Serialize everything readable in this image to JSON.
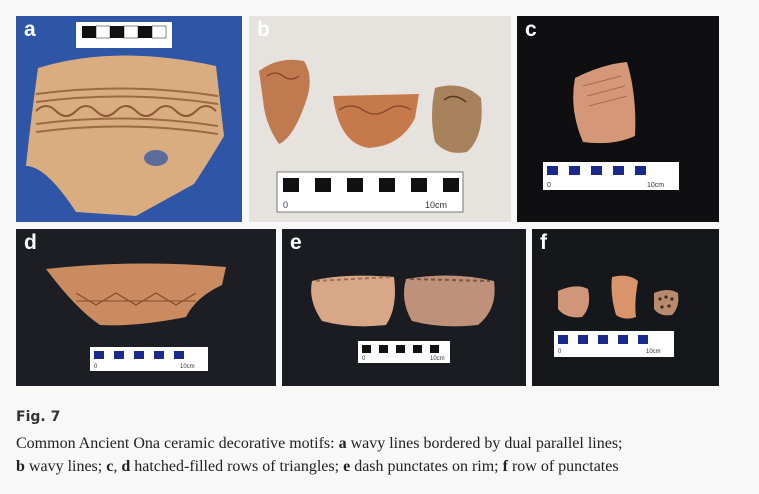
{
  "figure": {
    "label": "Fig. 7",
    "caption": {
      "intro": "Common Ancient Ona ceramic decorative motifs: ",
      "a_letter": "a",
      "a_text": " wavy lines bordered by dual parallel lines;",
      "b_letter": "b",
      "b_text": " wavy lines; ",
      "c_letter": "c",
      "comma": ", ",
      "d_letter": "d",
      "d_text": " hatched-filled rows of triangles; ",
      "e_letter": "e",
      "e_text": " dash punctates on rim; ",
      "f_letter": "f",
      "f_text": " row of punctates"
    }
  },
  "panels": [
    {
      "letter": "a",
      "background": "#2a4f9e"
    },
    {
      "letter": "b",
      "background": "#e4e2de",
      "scale_zero": "0",
      "scale_label": "10cm"
    },
    {
      "letter": "c",
      "background": "#0e0e10",
      "scale_zero": "0",
      "scale_label": "10cm"
    },
    {
      "letter": "d",
      "background": "#1b1d22",
      "scale_zero": "0",
      "scale_label": "10cm"
    },
    {
      "letter": "e",
      "background": "#1a1b20",
      "scale_zero": "0",
      "scale_label": "10cm"
    },
    {
      "letter": "f",
      "background": "#15161a",
      "scale_zero": "0",
      "scale_label": "10cm"
    }
  ],
  "colors": {
    "sherd_light": "#d9a878",
    "sherd_dark": "#b97852",
    "scale_black": "#111111",
    "scale_white": "#ffffff"
  }
}
